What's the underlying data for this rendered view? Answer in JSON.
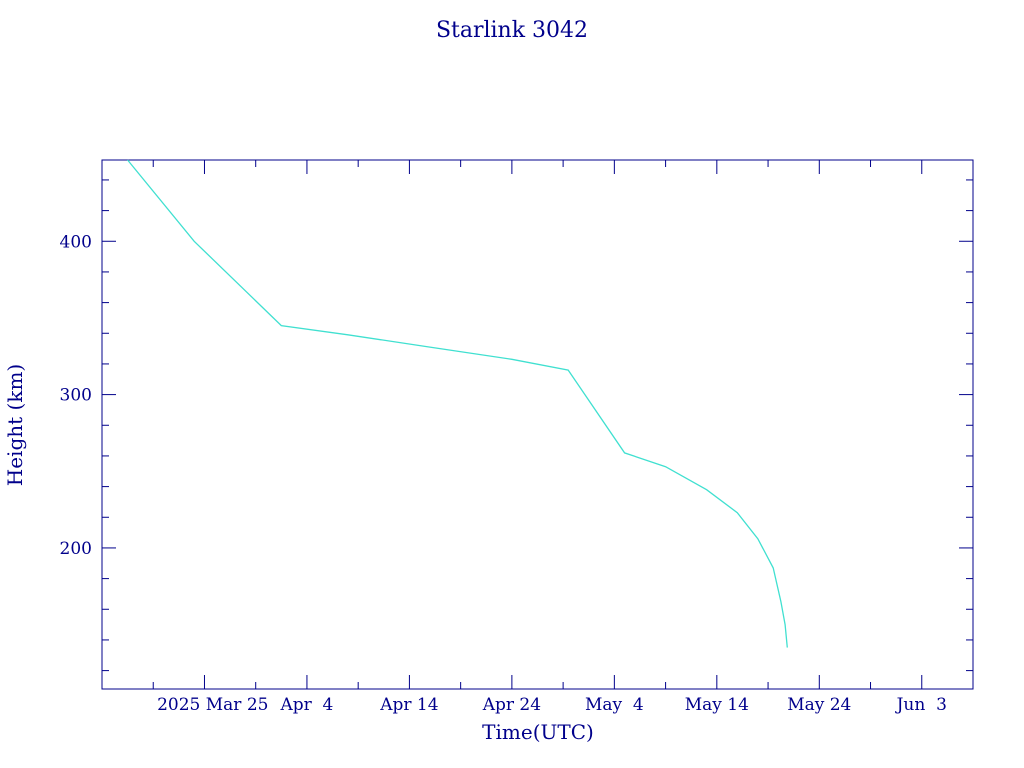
{
  "chart_data": {
    "type": "line",
    "title": "Starlink 3042",
    "xlabel": "Time(UTC)",
    "ylabel": "Height (km)",
    "x_range": [
      "2025-03-15",
      "2025-06-08"
    ],
    "ylim": [
      108,
      453
    ],
    "y_ticks": [
      200,
      300,
      400
    ],
    "x_ticks": [
      {
        "date": "2025-03-25",
        "label": "2025 Mar 25"
      },
      {
        "date": "2025-04-04",
        "label": "Apr  4"
      },
      {
        "date": "2025-04-14",
        "label": "Apr 14"
      },
      {
        "date": "2025-04-24",
        "label": "Apr 24"
      },
      {
        "date": "2025-05-04",
        "label": "May  4"
      },
      {
        "date": "2025-05-14",
        "label": "May 14"
      },
      {
        "date": "2025-05-24",
        "label": "May 24"
      },
      {
        "date": "2025-06-03",
        "label": "Jun  3"
      }
    ],
    "grid": false,
    "colors": {
      "axis": "#00008b",
      "series": "#40e0d0"
    },
    "series": [
      {
        "values": [
          {
            "x": "2025-03-17 12:00",
            "y": 453
          },
          {
            "x": "2025-03-24 00:00",
            "y": 400
          },
          {
            "x": "2025-04-01 12:00",
            "y": 345
          },
          {
            "x": "2025-04-08 00:00",
            "y": 339
          },
          {
            "x": "2025-04-16 00:00",
            "y": 331
          },
          {
            "x": "2025-04-24 00:00",
            "y": 323
          },
          {
            "x": "2025-04-29 12:00",
            "y": 316
          },
          {
            "x": "2025-05-05 00:00",
            "y": 262
          },
          {
            "x": "2025-05-09 00:00",
            "y": 253
          },
          {
            "x": "2025-05-13 00:00",
            "y": 238
          },
          {
            "x": "2025-05-16 00:00",
            "y": 223
          },
          {
            "x": "2025-05-18 00:00",
            "y": 206
          },
          {
            "x": "2025-05-19 12:00",
            "y": 187
          },
          {
            "x": "2025-05-20 06:00",
            "y": 165
          },
          {
            "x": "2025-05-20 16:00",
            "y": 150
          },
          {
            "x": "2025-05-20 21:00",
            "y": 135
          }
        ]
      }
    ]
  }
}
